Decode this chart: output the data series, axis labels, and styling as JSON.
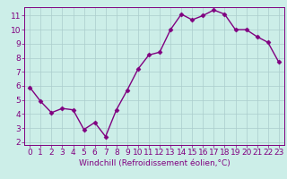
{
  "x": [
    0,
    1,
    2,
    3,
    4,
    5,
    6,
    7,
    8,
    9,
    10,
    11,
    12,
    13,
    14,
    15,
    16,
    17,
    18,
    19,
    20,
    21,
    22,
    23
  ],
  "y": [
    5.9,
    4.9,
    4.1,
    4.4,
    4.3,
    2.9,
    3.4,
    2.4,
    4.3,
    5.7,
    7.2,
    8.2,
    8.4,
    10.0,
    11.1,
    10.7,
    11.0,
    11.4,
    11.1,
    10.0,
    10.0,
    9.5,
    9.1,
    7.7
  ],
  "line_color": "#800080",
  "marker": "D",
  "marker_size": 2.5,
  "bg_color": "#cceee8",
  "grid_color": "#aacccc",
  "xlabel": "Windchill (Refroidissement éolien,°C)",
  "xlim": [
    -0.5,
    23.5
  ],
  "ylim": [
    1.8,
    11.6
  ],
  "yticks": [
    2,
    3,
    4,
    5,
    6,
    7,
    8,
    9,
    10,
    11
  ],
  "xticks": [
    0,
    1,
    2,
    3,
    4,
    5,
    6,
    7,
    8,
    9,
    10,
    11,
    12,
    13,
    14,
    15,
    16,
    17,
    18,
    19,
    20,
    21,
    22,
    23
  ],
  "xlabel_fontsize": 6.5,
  "tick_fontsize": 6.5,
  "axes_color": "#800080",
  "line_width": 1.0
}
